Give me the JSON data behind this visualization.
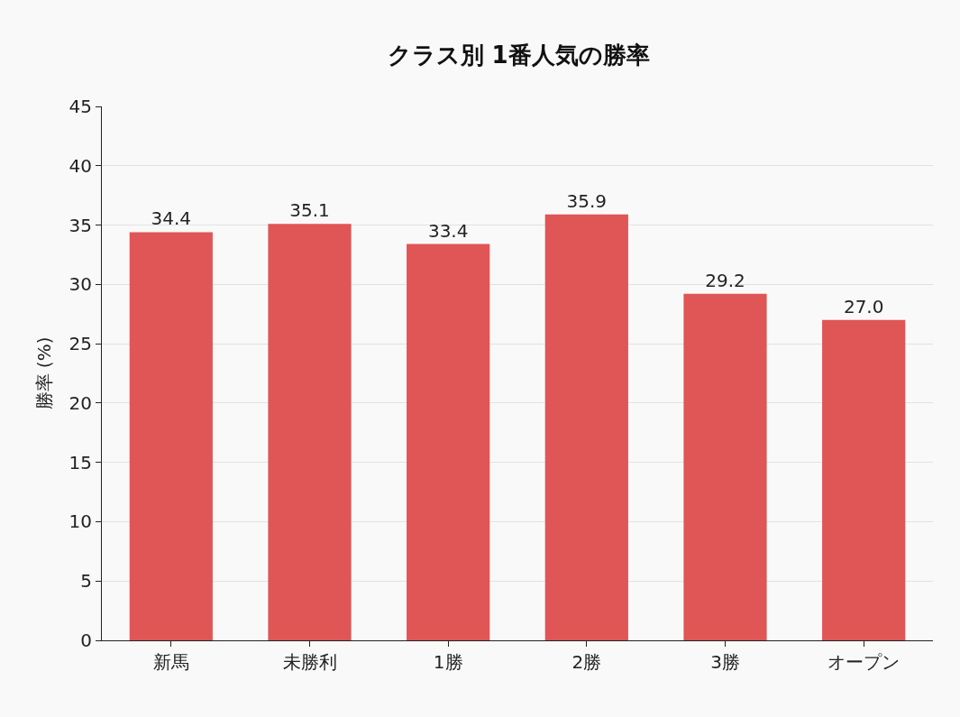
{
  "chart_data": {
    "type": "bar",
    "title": "クラス別 1番人気の勝率",
    "ylabel": "勝率 (%)",
    "categories": [
      "新馬",
      "未勝利",
      "1勝",
      "2勝",
      "3勝",
      "オープン"
    ],
    "values": [
      34.4,
      35.1,
      33.4,
      35.9,
      29.2,
      27.0
    ],
    "value_labels": [
      "34.4",
      "35.1",
      "33.4",
      "35.9",
      "29.2",
      "27.0"
    ],
    "color": "#e05555",
    "ylim": [
      0,
      45
    ],
    "yticks": [
      0,
      5,
      10,
      15,
      20,
      25,
      30,
      35,
      40,
      45
    ],
    "grid": "y"
  }
}
